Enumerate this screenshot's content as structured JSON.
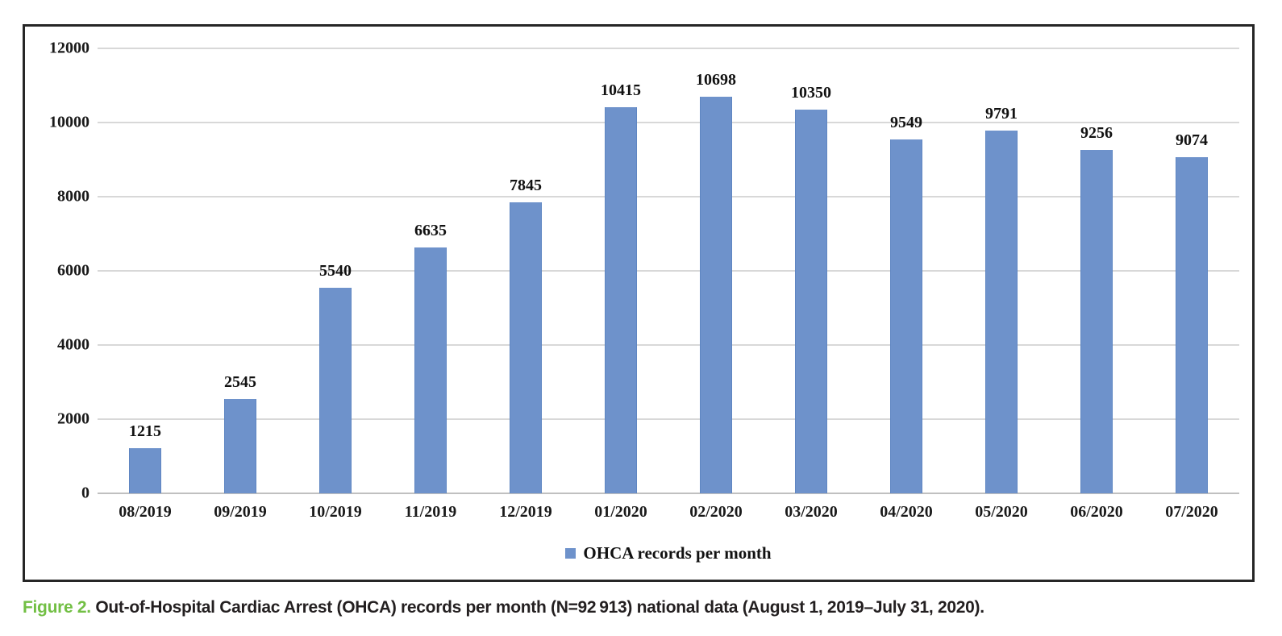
{
  "figure": {
    "caption_label": "Figure 2.",
    "caption_text": "Out-of-Hospital Cardiac Arrest (OHCA) records per month (N=92 913) national data (August 1, 2019–July 31, 2020)."
  },
  "legend": {
    "label": "OHCA records per month"
  },
  "colors": {
    "bar": "#6e92cb",
    "bar_edge": "#5f86c2",
    "figure_green": "#72bf44",
    "gridline": "#d8d8d8",
    "axis_line": "#c0c0c0",
    "frame_border": "#262626"
  },
  "chart_data": {
    "type": "bar",
    "title": "",
    "xlabel": "",
    "ylabel": "",
    "categories": [
      "08/2019",
      "09/2019",
      "10/2019",
      "11/2019",
      "12/2019",
      "01/2020",
      "02/2020",
      "03/2020",
      "04/2020",
      "05/2020",
      "06/2020",
      "07/2020"
    ],
    "values": [
      1215,
      2545,
      5540,
      6635,
      7845,
      10415,
      10698,
      10350,
      9549,
      9791,
      9256,
      9074
    ],
    "series_name": "OHCA records per month",
    "y_ticks": [
      0,
      2000,
      4000,
      6000,
      8000,
      10000,
      12000
    ],
    "ylim": [
      0,
      12000
    ],
    "grid": true,
    "legend_position": "bottom",
    "data_labels": true
  }
}
